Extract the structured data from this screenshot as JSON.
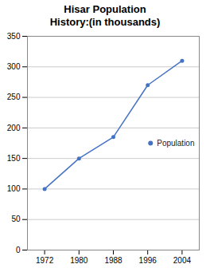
{
  "chart_data": {
    "type": "line",
    "title": "Hisar Population\nHistory:(in thousands)",
    "x": [
      1972,
      1980,
      1988,
      1996,
      2004
    ],
    "series": [
      {
        "name": "Population",
        "color": "#4472C4",
        "values": [
          100,
          150,
          185,
          270,
          310
        ],
        "marker": "circle",
        "line_style": "solid"
      }
    ],
    "xlim": [
      1968,
      2008
    ],
    "xticks": [
      1972,
      1980,
      1988,
      1996,
      2004
    ],
    "ylim": [
      0,
      350
    ],
    "yticks": [
      0,
      50,
      100,
      150,
      200,
      250,
      300,
      350
    ],
    "grid": true,
    "legend": "center right"
  }
}
